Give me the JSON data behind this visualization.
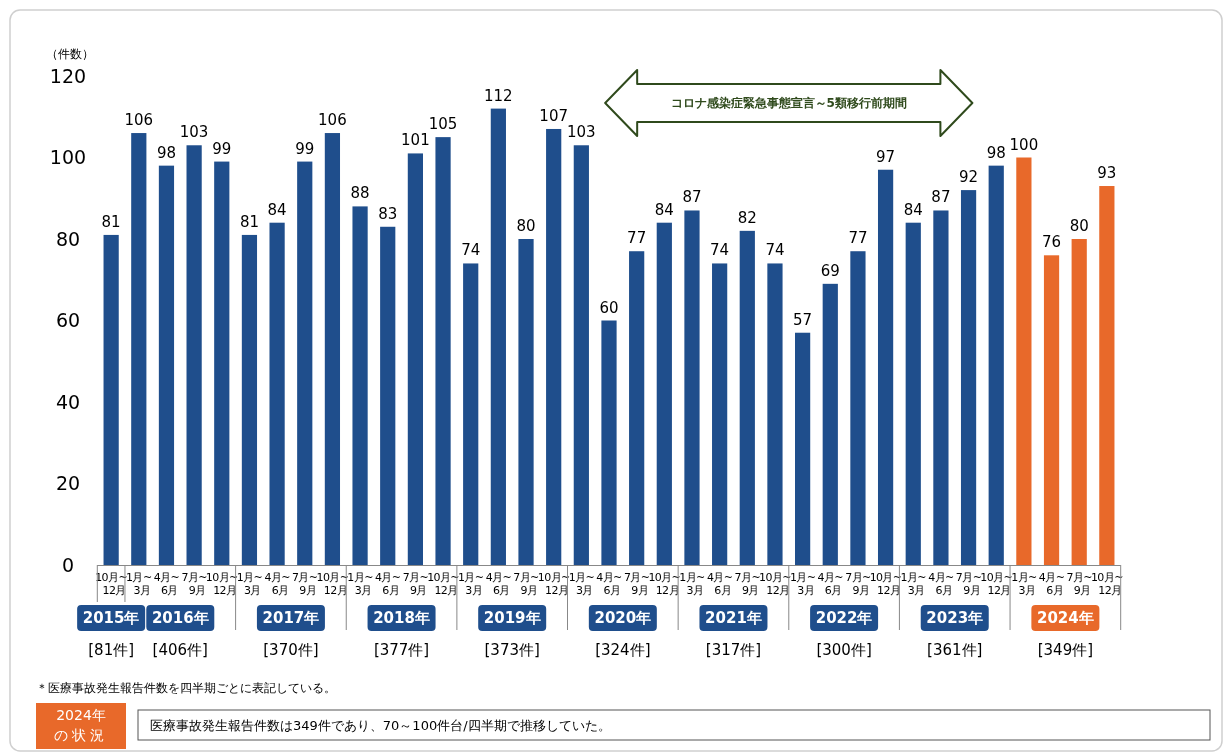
{
  "chart_data": {
    "type": "bar",
    "ylabel": "（件数）",
    "categories": [
      "10月~12月",
      "1月~3月",
      "4月~6月",
      "7月~9月",
      "10月~12月",
      "1月~3月",
      "4月~6月",
      "7月~9月",
      "10月~12月",
      "1月~3月",
      "4月~6月",
      "7月~9月",
      "10月~12月",
      "1月~3月",
      "4月~6月",
      "7月~9月",
      "10月~12月",
      "1月~3月",
      "4月~6月",
      "7月~9月",
      "10月~12月",
      "1月~3月",
      "4月~6月",
      "7月~9月",
      "10月~12月",
      "1月~3月",
      "4月~6月",
      "7月~9月",
      "10月~12月",
      "1月~3月",
      "4月~6月",
      "7月~9月",
      "10月~12月",
      "1月~3月",
      "4月~6月",
      "7月~9月",
      "10月~12月"
    ],
    "values": [
      81,
      106,
      98,
      103,
      99,
      81,
      84,
      99,
      106,
      88,
      83,
      101,
      105,
      74,
      112,
      80,
      107,
      103,
      60,
      77,
      84,
      87,
      74,
      82,
      74,
      57,
      69,
      77,
      97,
      84,
      87,
      92,
      98,
      100,
      76,
      80,
      93
    ],
    "colors": [
      "#1f4e8c",
      "#1f4e8c",
      "#1f4e8c",
      "#1f4e8c",
      "#1f4e8c",
      "#1f4e8c",
      "#1f4e8c",
      "#1f4e8c",
      "#1f4e8c",
      "#1f4e8c",
      "#1f4e8c",
      "#1f4e8c",
      "#1f4e8c",
      "#1f4e8c",
      "#1f4e8c",
      "#1f4e8c",
      "#1f4e8c",
      "#1f4e8c",
      "#1f4e8c",
      "#1f4e8c",
      "#1f4e8c",
      "#1f4e8c",
      "#1f4e8c",
      "#1f4e8c",
      "#1f4e8c",
      "#1f4e8c",
      "#1f4e8c",
      "#1f4e8c",
      "#1f4e8c",
      "#1f4e8c",
      "#1f4e8c",
      "#1f4e8c",
      "#1f4e8c",
      "#e8692a",
      "#e8692a",
      "#e8692a",
      "#e8692a"
    ],
    "ylim": [
      0,
      120
    ],
    "yticks": [
      0,
      20,
      40,
      60,
      80,
      100,
      120
    ],
    "data_labels": true,
    "grid": false,
    "annotations": [
      "2015年",
      "2016年",
      "2017年",
      "2018年",
      "2019年",
      "2020年",
      "2021年",
      "2022年",
      "2023年",
      "2024年",
      "[81件]",
      "[406件]",
      "[370件]",
      "[377件]",
      "[373件]",
      "[324件]",
      "[317件]",
      "[300件]",
      "[361件]",
      "[349件]",
      "コロナ感染症緊急事態宣言～5類移行前期間",
      "＊医療事故発生報告件数を四半期ごとに表記している。",
      "2024年の状況",
      "医療事故発生報告件数は349件であり、70～100件台/四半期で推移していた。"
    ]
  }
}
